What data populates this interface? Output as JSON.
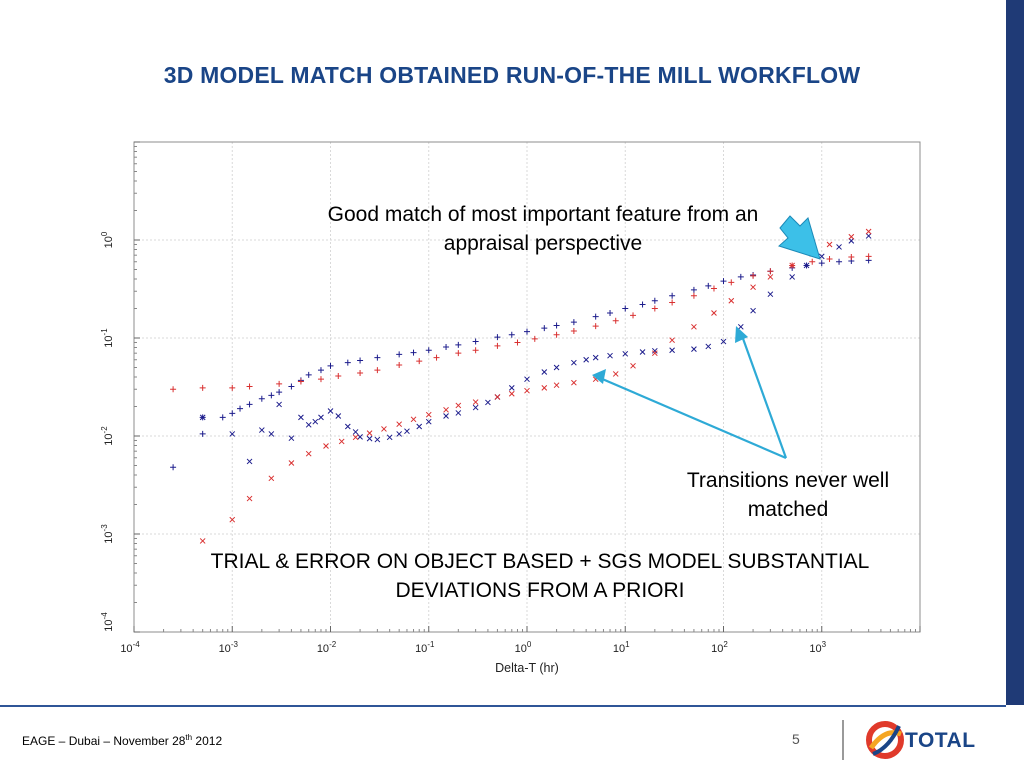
{
  "slide": {
    "title": "3D MODEL MATCH OBTAINED RUN-OF-THE MILL WORKFLOW",
    "annotations": {
      "good_match": "Good match of most important feature from an appraisal perspective",
      "transitions": "Transitions never well matched",
      "trial_error": "TRIAL & ERROR ON OBJECT BASED + SGS MODEL SUBSTANTIAL DEVIATIONS FROM A PRIORI"
    },
    "footer": {
      "event_prefix": "EAGE – Dubai – November 28",
      "event_sup": "th",
      "event_suffix": " 2012",
      "page_number": "5",
      "logo_text": "TOTAL"
    }
  },
  "chart_data": {
    "type": "scatter",
    "xlabel": "Delta-T (hr)",
    "ylabel": "",
    "x_scale": "log",
    "y_scale": "log",
    "xlim": [
      0.0001,
      10000
    ],
    "ylim": [
      0.0001,
      10
    ],
    "grid": true,
    "x_ticks": [
      {
        "base": "10",
        "exp": "-4",
        "value": 0.0001
      },
      {
        "base": "10",
        "exp": "-3",
        "value": 0.001
      },
      {
        "base": "10",
        "exp": "-2",
        "value": 0.01
      },
      {
        "base": "10",
        "exp": "-1",
        "value": 0.1
      },
      {
        "base": "10",
        "exp": "0",
        "value": 1
      },
      {
        "base": "10",
        "exp": "1",
        "value": 10
      },
      {
        "base": "10",
        "exp": "2",
        "value": 100
      },
      {
        "base": "10",
        "exp": "3",
        "value": 1000
      }
    ],
    "y_ticks": [
      {
        "base": "10",
        "exp": "-4",
        "value": 0.0001
      },
      {
        "base": "10",
        "exp": "-3",
        "value": 0.001
      },
      {
        "base": "10",
        "exp": "-2",
        "value": 0.01
      },
      {
        "base": "10",
        "exp": "-1",
        "value": 0.1
      },
      {
        "base": "10",
        "exp": "0",
        "value": 1
      }
    ],
    "colors": {
      "model": "#1c1c8c",
      "measured": "#d93030",
      "arrow": "#2eaad6",
      "grid": "#d9d9d9"
    },
    "series": [
      {
        "marker": "plus",
        "color": "#1c1c8c",
        "x": [
          0.00025,
          0.0005,
          0.0005,
          0.0008,
          0.001,
          0.0012,
          0.0015,
          0.002,
          0.0025,
          0.003,
          0.004,
          0.005,
          0.006,
          0.008,
          0.01,
          0.015,
          0.02,
          0.03,
          0.05,
          0.07,
          0.1,
          0.15,
          0.2,
          0.3,
          0.5,
          0.7,
          1,
          1.5,
          2,
          3,
          5,
          7,
          10,
          15,
          20,
          30,
          50,
          70,
          100,
          150,
          200,
          300,
          500,
          700,
          1000,
          1500,
          2000,
          3000
        ],
        "y": [
          0.0048,
          0.0105,
          0.0155,
          0.0155,
          0.017,
          0.019,
          0.021,
          0.024,
          0.026,
          0.028,
          0.032,
          0.037,
          0.042,
          0.047,
          0.052,
          0.056,
          0.059,
          0.063,
          0.068,
          0.071,
          0.075,
          0.081,
          0.085,
          0.092,
          0.102,
          0.108,
          0.116,
          0.126,
          0.134,
          0.145,
          0.165,
          0.18,
          0.2,
          0.22,
          0.24,
          0.27,
          0.31,
          0.34,
          0.38,
          0.42,
          0.44,
          0.48,
          0.52,
          0.55,
          0.58,
          0.6,
          0.61,
          0.62
        ]
      },
      {
        "marker": "plus",
        "color": "#d93030",
        "x": [
          0.00025,
          0.0005,
          0.001,
          0.0015,
          0.003,
          0.005,
          0.008,
          0.012,
          0.02,
          0.03,
          0.05,
          0.08,
          0.12,
          0.2,
          0.3,
          0.5,
          0.8,
          1.2,
          2,
          3,
          5,
          8,
          12,
          20,
          30,
          50,
          80,
          120,
          200,
          300,
          500,
          800,
          1200,
          2000,
          3000
        ],
        "y": [
          0.03,
          0.031,
          0.031,
          0.032,
          0.034,
          0.036,
          0.038,
          0.041,
          0.044,
          0.047,
          0.053,
          0.058,
          0.063,
          0.07,
          0.075,
          0.083,
          0.09,
          0.098,
          0.108,
          0.118,
          0.132,
          0.15,
          0.17,
          0.2,
          0.23,
          0.27,
          0.32,
          0.37,
          0.43,
          0.48,
          0.55,
          0.6,
          0.64,
          0.67,
          0.68
        ]
      },
      {
        "marker": "cross",
        "color": "#1c1c8c",
        "x": [
          0.0005,
          0.001,
          0.0015,
          0.002,
          0.0025,
          0.003,
          0.004,
          0.005,
          0.006,
          0.007,
          0.008,
          0.01,
          0.012,
          0.015,
          0.018,
          0.02,
          0.025,
          0.03,
          0.04,
          0.05,
          0.06,
          0.08,
          0.1,
          0.15,
          0.2,
          0.3,
          0.4,
          0.5,
          0.7,
          1,
          1.5,
          2,
          3,
          4,
          5,
          7,
          10,
          15,
          20,
          30,
          50,
          70,
          100,
          150,
          200,
          300,
          500,
          700,
          1000,
          1500,
          2000,
          3000
        ],
        "y": [
          0.0155,
          0.0105,
          0.0055,
          0.0115,
          0.0105,
          0.021,
          0.0095,
          0.0155,
          0.013,
          0.014,
          0.0155,
          0.018,
          0.016,
          0.0125,
          0.011,
          0.0098,
          0.0094,
          0.0092,
          0.0097,
          0.0105,
          0.0112,
          0.0125,
          0.014,
          0.016,
          0.0172,
          0.0195,
          0.022,
          0.025,
          0.031,
          0.038,
          0.045,
          0.05,
          0.056,
          0.06,
          0.063,
          0.066,
          0.069,
          0.072,
          0.074,
          0.075,
          0.077,
          0.082,
          0.092,
          0.13,
          0.19,
          0.28,
          0.42,
          0.55,
          0.68,
          0.85,
          0.98,
          1.1
        ]
      },
      {
        "marker": "cross",
        "color": "#d93030",
        "x": [
          0.0005,
          0.001,
          0.0015,
          0.0025,
          0.004,
          0.006,
          0.009,
          0.013,
          0.018,
          0.025,
          0.035,
          0.05,
          0.07,
          0.1,
          0.15,
          0.2,
          0.3,
          0.5,
          0.7,
          1,
          1.5,
          2,
          3,
          5,
          8,
          12,
          20,
          30,
          50,
          80,
          120,
          200,
          300,
          500,
          800,
          1200,
          2000,
          3000
        ],
        "y": [
          0.00085,
          0.0014,
          0.0023,
          0.0037,
          0.0053,
          0.0066,
          0.0079,
          0.0088,
          0.0097,
          0.0107,
          0.0118,
          0.0132,
          0.0148,
          0.0165,
          0.0185,
          0.0205,
          0.0222,
          0.025,
          0.027,
          0.029,
          0.031,
          0.033,
          0.035,
          0.038,
          0.043,
          0.052,
          0.07,
          0.095,
          0.13,
          0.18,
          0.24,
          0.33,
          0.42,
          0.55,
          0.72,
          0.9,
          1.08,
          1.22
        ]
      }
    ]
  }
}
